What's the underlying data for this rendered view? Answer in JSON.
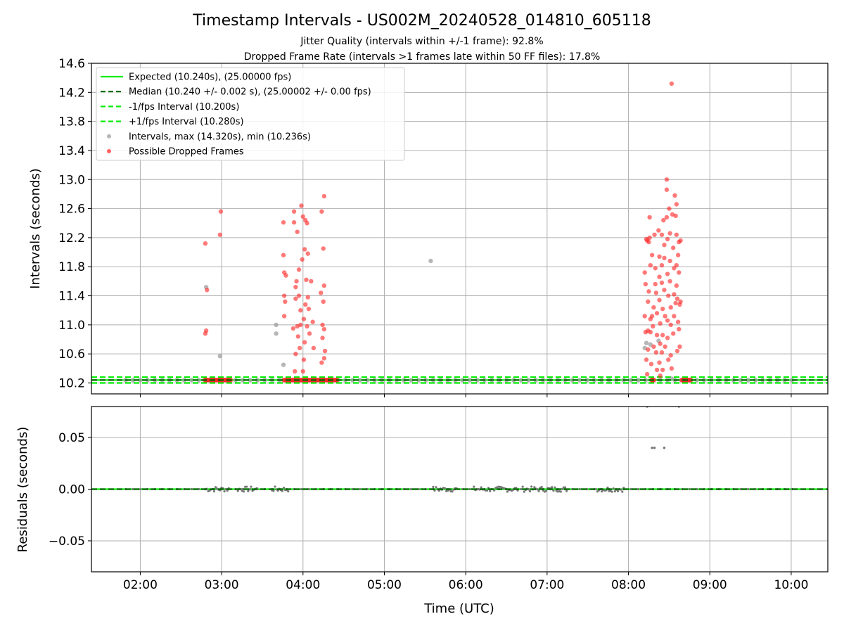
{
  "chart_data": [
    {
      "type": "scatter",
      "title": "Timestamp Intervals - US002M_20240528_014810_605118",
      "subtitle_1": "Jitter Quality (intervals within +/-1 frame): 92.8%",
      "subtitle_2": "Dropped Frame Rate (intervals >1 frames late within 50 FF files): 17.8%",
      "ylabel": "Intervals (seconds)",
      "xlabel": "Time (UTC)",
      "x_unit": "hours UTC",
      "xlim": [
        1.4,
        10.45
      ],
      "ylim": [
        10.05,
        14.6
      ],
      "x_ticks": [
        2,
        3,
        4,
        5,
        6,
        7,
        8,
        9,
        10
      ],
      "x_tick_labels": [
        "02:00",
        "03:00",
        "04:00",
        "05:00",
        "06:00",
        "07:00",
        "08:00",
        "09:00",
        "10:00"
      ],
      "y_ticks": [
        10.2,
        10.6,
        11.0,
        11.4,
        11.8,
        12.2,
        12.6,
        13.0,
        13.4,
        13.8,
        14.2,
        14.6
      ],
      "y_tick_labels": [
        "10.2",
        "10.6",
        "11.0",
        "11.4",
        "11.8",
        "12.2",
        "12.6",
        "13.0",
        "13.4",
        "13.8",
        "14.2",
        "14.6"
      ],
      "grid": true,
      "legend_position": "top-left",
      "legend": [
        {
          "label": "Expected (10.240s), (25.00000 fps)",
          "style": "solid-line",
          "color": "#00ee00"
        },
        {
          "label": "Median (10.240 +/- 0.002 s), (25.00002 +/- 0.00 fps)",
          "style": "dashed-line",
          "color": "#006400"
        },
        {
          "label": "-1/fps Interval (10.200s)",
          "style": "dashed-line",
          "color": "#00ee00"
        },
        {
          "label": "+1/fps Interval (10.280s)",
          "style": "dashed-line",
          "color": "#00ee00"
        },
        {
          "label": "Intervals, max (14.320s), min (10.236s)",
          "style": "marker",
          "color": "#999999"
        },
        {
          "label": "Possible Dropped Frames",
          "style": "marker",
          "color": "#ff2020"
        }
      ],
      "reference_lines": {
        "expected": 10.24,
        "median": 10.24,
        "minus_1_fps": 10.2,
        "plus_1_fps": 10.28
      },
      "baseline_intervals": {
        "y": 10.24,
        "x_start": 1.82,
        "x_end": 10.05,
        "step": 0.09
      },
      "series": [
        {
          "name": "Intervals, max (14.320s), min (10.236s)",
          "color": "#999999",
          "points": [
            [
              2.81,
              11.52
            ],
            [
              2.98,
              10.57
            ],
            [
              3.67,
              11.0
            ],
            [
              3.67,
              10.88
            ],
            [
              3.76,
              10.45
            ],
            [
              5.57,
              11.88
            ],
            [
              8.2,
              10.68
            ],
            [
              8.22,
              10.75
            ],
            [
              8.27,
              10.73
            ],
            [
              8.37,
              10.78
            ],
            [
              8.53,
              10.26
            ]
          ]
        },
        {
          "name": "Possible Dropped Frames",
          "color": "#ff2020",
          "points": [
            [
              2.8,
              12.12
            ],
            [
              2.82,
              11.48
            ],
            [
              2.81,
              10.92
            ],
            [
              2.8,
              10.88
            ],
            [
              2.98,
              12.24
            ],
            [
              2.99,
              12.56
            ],
            [
              3.76,
              12.41
            ],
            [
              3.76,
              11.96
            ],
            [
              3.77,
              11.72
            ],
            [
              3.79,
              11.68
            ],
            [
              3.77,
              11.4
            ],
            [
              3.78,
              11.32
            ],
            [
              3.77,
              11.12
            ],
            [
              3.89,
              12.56
            ],
            [
              3.89,
              12.41
            ],
            [
              3.88,
              10.95
            ],
            [
              3.93,
              12.28
            ],
            [
              3.92,
              11.6
            ],
            [
              3.91,
              11.52
            ],
            [
              3.91,
              11.36
            ],
            [
              3.93,
              10.98
            ],
            [
              3.94,
              10.84
            ],
            [
              3.91,
              10.6
            ],
            [
              3.9,
              10.36
            ],
            [
              3.95,
              11.76
            ],
            [
              3.95,
              11.4
            ],
            [
              3.96,
              10.68
            ],
            [
              3.98,
              12.64
            ],
            [
              3.97,
              11.2
            ],
            [
              3.97,
              11.0
            ],
            [
              3.99,
              11.9
            ],
            [
              4.0,
              12.49
            ],
            [
              4.02,
              12.04
            ],
            [
              4.03,
              12.44
            ],
            [
              4.03,
              11.28
            ],
            [
              4.01,
              11.08
            ],
            [
              4.02,
              10.76
            ],
            [
              4.01,
              10.52
            ],
            [
              4.0,
              10.36
            ],
            [
              4.05,
              12.4
            ],
            [
              4.06,
              11.98
            ],
            [
              4.04,
              11.62
            ],
            [
              4.06,
              11.38
            ],
            [
              4.07,
              11.22
            ],
            [
              4.05,
              10.98
            ],
            [
              4.08,
              10.88
            ],
            [
              4.1,
              11.6
            ],
            [
              4.12,
              11.04
            ],
            [
              4.13,
              10.68
            ],
            [
              4.23,
              12.56
            ],
            [
              4.22,
              11.44
            ],
            [
              4.24,
              11.0
            ],
            [
              4.24,
              10.82
            ],
            [
              4.23,
              10.48
            ],
            [
              4.26,
              12.77
            ],
            [
              4.25,
              12.05
            ],
            [
              4.26,
              11.54
            ],
            [
              4.25,
              11.32
            ],
            [
              4.26,
              10.94
            ],
            [
              4.27,
              10.64
            ],
            [
              4.26,
              10.54
            ],
            [
              8.2,
              11.72
            ],
            [
              8.21,
              11.56
            ],
            [
              8.2,
              11.12
            ],
            [
              8.21,
              10.9
            ],
            [
              8.22,
              10.52
            ],
            [
              8.23,
              10.32
            ],
            [
              8.22,
              12.18
            ],
            [
              8.23,
              12.16
            ],
            [
              8.25,
              12.14
            ],
            [
              8.25,
              11.46
            ],
            [
              8.24,
              11.32
            ],
            [
              8.24,
              10.92
            ],
            [
              8.24,
              10.66
            ],
            [
              8.26,
              12.48
            ],
            [
              8.26,
              12.2
            ],
            [
              8.27,
              11.82
            ],
            [
              8.27,
              11.08
            ],
            [
              8.27,
              10.9
            ],
            [
              8.28,
              10.46
            ],
            [
              8.29,
              11.96
            ],
            [
              8.29,
              11.12
            ],
            [
              8.3,
              10.98
            ],
            [
              8.31,
              11.24
            ],
            [
              8.31,
              10.7
            ],
            [
              8.32,
              12.24
            ],
            [
              8.33,
              11.78
            ],
            [
              8.33,
              11.56
            ],
            [
              8.34,
              11.44
            ],
            [
              8.35,
              11.16
            ],
            [
              8.35,
              10.86
            ],
            [
              8.34,
              10.62
            ],
            [
              8.35,
              10.38
            ],
            [
              8.37,
              12.3
            ],
            [
              8.38,
              11.94
            ],
            [
              8.38,
              11.66
            ],
            [
              8.38,
              11.34
            ],
            [
              8.39,
              11.02
            ],
            [
              8.39,
              10.74
            ],
            [
              8.38,
              10.48
            ],
            [
              8.39,
              10.3
            ],
            [
              8.41,
              12.24
            ],
            [
              8.41,
              11.82
            ],
            [
              8.41,
              11.58
            ],
            [
              8.42,
              11.22
            ],
            [
              8.42,
              10.86
            ],
            [
              8.41,
              10.62
            ],
            [
              8.42,
              10.38
            ],
            [
              8.43,
              12.44
            ],
            [
              8.44,
              12.1
            ],
            [
              8.44,
              11.92
            ],
            [
              8.44,
              11.48
            ],
            [
              8.45,
              11.12
            ],
            [
              8.45,
              10.7
            ],
            [
              8.47,
              13.0
            ],
            [
              8.47,
              12.86
            ],
            [
              8.47,
              12.48
            ],
            [
              8.48,
              12.18
            ],
            [
              8.48,
              11.7
            ],
            [
              8.49,
              11.4
            ],
            [
              8.48,
              11.06
            ],
            [
              8.48,
              10.82
            ],
            [
              8.49,
              10.52
            ],
            [
              8.5,
              12.6
            ],
            [
              8.51,
              12.26
            ],
            [
              8.51,
              11.88
            ],
            [
              8.51,
              11.6
            ],
            [
              8.52,
              11.24
            ],
            [
              8.52,
              11.0
            ],
            [
              8.52,
              10.58
            ],
            [
              8.53,
              10.4
            ],
            [
              8.53,
              14.32
            ],
            [
              8.54,
              12.52
            ],
            [
              8.55,
              12.06
            ],
            [
              8.56,
              11.78
            ],
            [
              8.56,
              11.42
            ],
            [
              8.56,
              11.12
            ],
            [
              8.55,
              10.88
            ],
            [
              8.57,
              12.78
            ],
            [
              8.58,
              12.5
            ],
            [
              8.59,
              12.24
            ],
            [
              8.59,
              11.82
            ],
            [
              8.59,
              11.54
            ],
            [
              8.58,
              11.3
            ],
            [
              8.6,
              10.64
            ],
            [
              8.59,
              12.66
            ],
            [
              8.61,
              11.96
            ],
            [
              8.6,
              11.36
            ],
            [
              8.61,
              11.04
            ],
            [
              8.62,
              12.14
            ],
            [
              8.62,
              11.72
            ],
            [
              8.63,
              11.28
            ],
            [
              8.62,
              10.94
            ],
            [
              8.63,
              10.7
            ],
            [
              8.64,
              12.16
            ],
            [
              8.64,
              11.32
            ]
          ]
        },
        {
          "name": "Possible Dropped Frames (baseline)",
          "color": "#ff2020",
          "segments": [
            [
              2.79,
              3.12
            ],
            [
              3.76,
              4.42
            ],
            [
              8.28,
              8.32
            ],
            [
              8.65,
              8.78
            ]
          ],
          "y": 10.24
        }
      ]
    },
    {
      "type": "scatter",
      "ylabel": "Residuals (seconds)",
      "xlabel": "Time (UTC)",
      "xlim": [
        1.4,
        10.45
      ],
      "ylim": [
        -0.08,
        0.08
      ],
      "y_ticks": [
        0.05,
        0.0,
        -0.05
      ],
      "y_tick_labels": [
        "0.05",
        "0.00",
        "−0.05"
      ],
      "x_ticks": [
        2,
        3,
        4,
        5,
        6,
        7,
        8,
        9,
        10
      ],
      "x_tick_labels": [
        "02:00",
        "03:00",
        "04:00",
        "05:00",
        "06:00",
        "07:00",
        "08:00",
        "09:00",
        "10:00"
      ],
      "grid": true,
      "reference_lines": {
        "zero": 0.0
      },
      "series": [
        {
          "name": "Residuals",
          "color": "#777777",
          "clusters": [
            [
              2.8,
              3.1
            ],
            [
              3.2,
              3.45
            ],
            [
              3.62,
              3.82
            ],
            [
              5.6,
              5.9
            ],
            [
              6.1,
              6.3
            ],
            [
              6.35,
              6.65
            ],
            [
              6.7,
              7.25
            ],
            [
              7.6,
              7.95
            ]
          ],
          "points": [
            [
              8.32,
              0.04
            ],
            [
              8.29,
              0.04
            ],
            [
              8.44,
              0.04
            ],
            [
              8.23,
              0.08
            ],
            [
              8.62,
              0.08
            ]
          ]
        }
      ]
    }
  ]
}
